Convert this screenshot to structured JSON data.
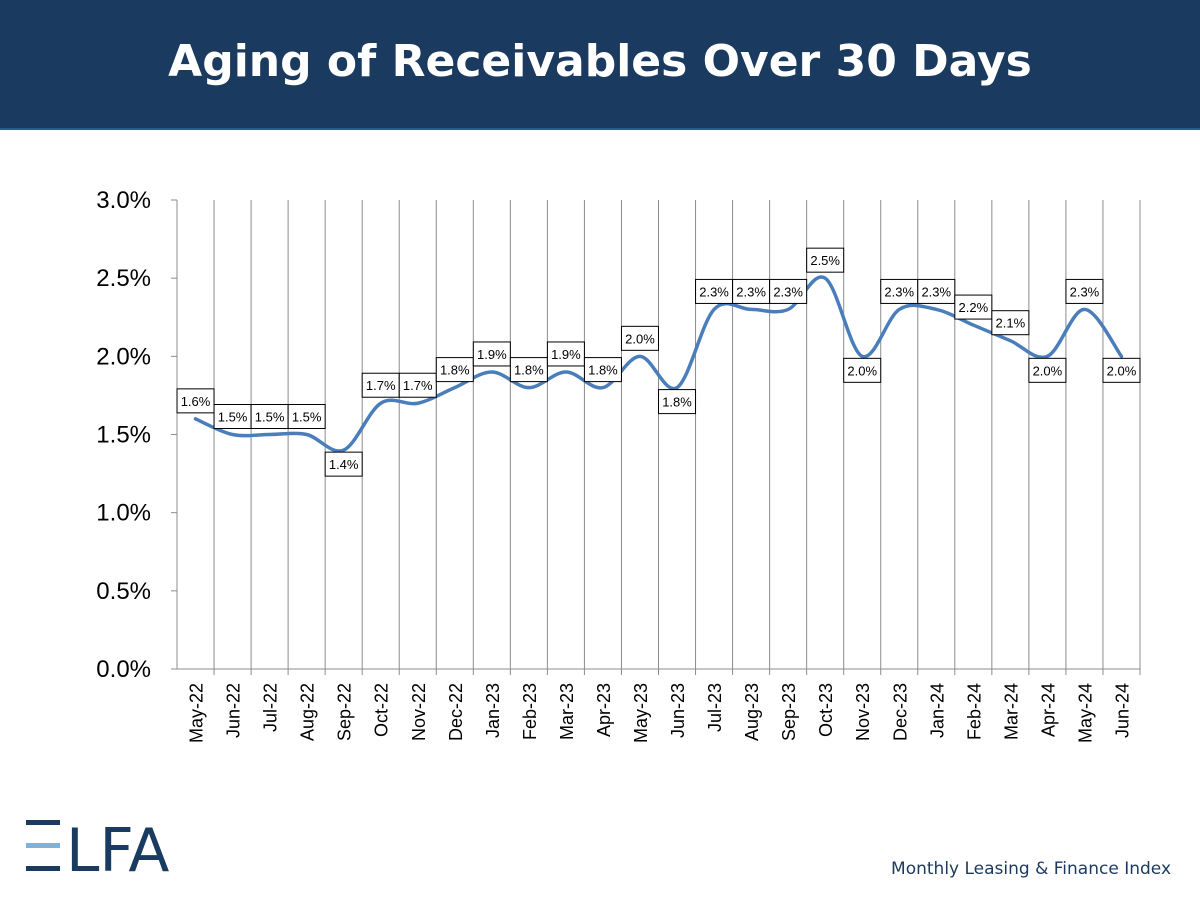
{
  "header": {
    "title": "Aging of Receivables Over 30 Days"
  },
  "footer": {
    "text": "Monthly Leasing & Finance Index"
  },
  "logo": {
    "text": "ELFA",
    "colors": {
      "primary": "#1b3a5f",
      "accent": "#7ab3e0"
    }
  },
  "colors": {
    "header_bg": "#1b3a5f",
    "line": "#4a7ebb",
    "grid": "#8c8c8c"
  },
  "chart_data": {
    "type": "line",
    "title": "",
    "xlabel": "",
    "ylabel": "",
    "ylim": [
      0,
      3.0
    ],
    "yticks": [
      "0.0%",
      "0.5%",
      "1.0%",
      "1.5%",
      "2.0%",
      "2.5%",
      "3.0%"
    ],
    "grid": "vertical",
    "legend": "none",
    "categories": [
      "May-22",
      "Jun-22",
      "Jul-22",
      "Aug-22",
      "Sep-22",
      "Oct-22",
      "Nov-22",
      "Dec-22",
      "Jan-23",
      "Feb-23",
      "Mar-23",
      "Apr-23",
      "May-23",
      "Jun-23",
      "Jul-23",
      "Aug-23",
      "Sep-23",
      "Oct-23",
      "Nov-23",
      "Dec-23",
      "Jan-24",
      "Feb-24",
      "Mar-24",
      "Apr-24",
      "May-24",
      "Jun-24"
    ],
    "values": [
      1.6,
      1.5,
      1.5,
      1.5,
      1.4,
      1.7,
      1.7,
      1.8,
      1.9,
      1.8,
      1.9,
      1.8,
      2.0,
      1.8,
      2.3,
      2.3,
      2.3,
      2.5,
      2.0,
      2.3,
      2.3,
      2.2,
      2.1,
      2.0,
      2.3,
      2.0
    ],
    "data_labels": [
      "1.6%",
      "1.5%",
      "1.5%",
      "1.5%",
      "1.4%",
      "1.7%",
      "1.7%",
      "1.8%",
      "1.9%",
      "1.8%",
      "1.9%",
      "1.8%",
      "2.0%",
      "1.8%",
      "2.3%",
      "2.3%",
      "2.3%",
      "2.5%",
      "2.0%",
      "2.3%",
      "2.3%",
      "2.2%",
      "2.1%",
      "2.0%",
      "2.3%",
      "2.0%"
    ]
  }
}
